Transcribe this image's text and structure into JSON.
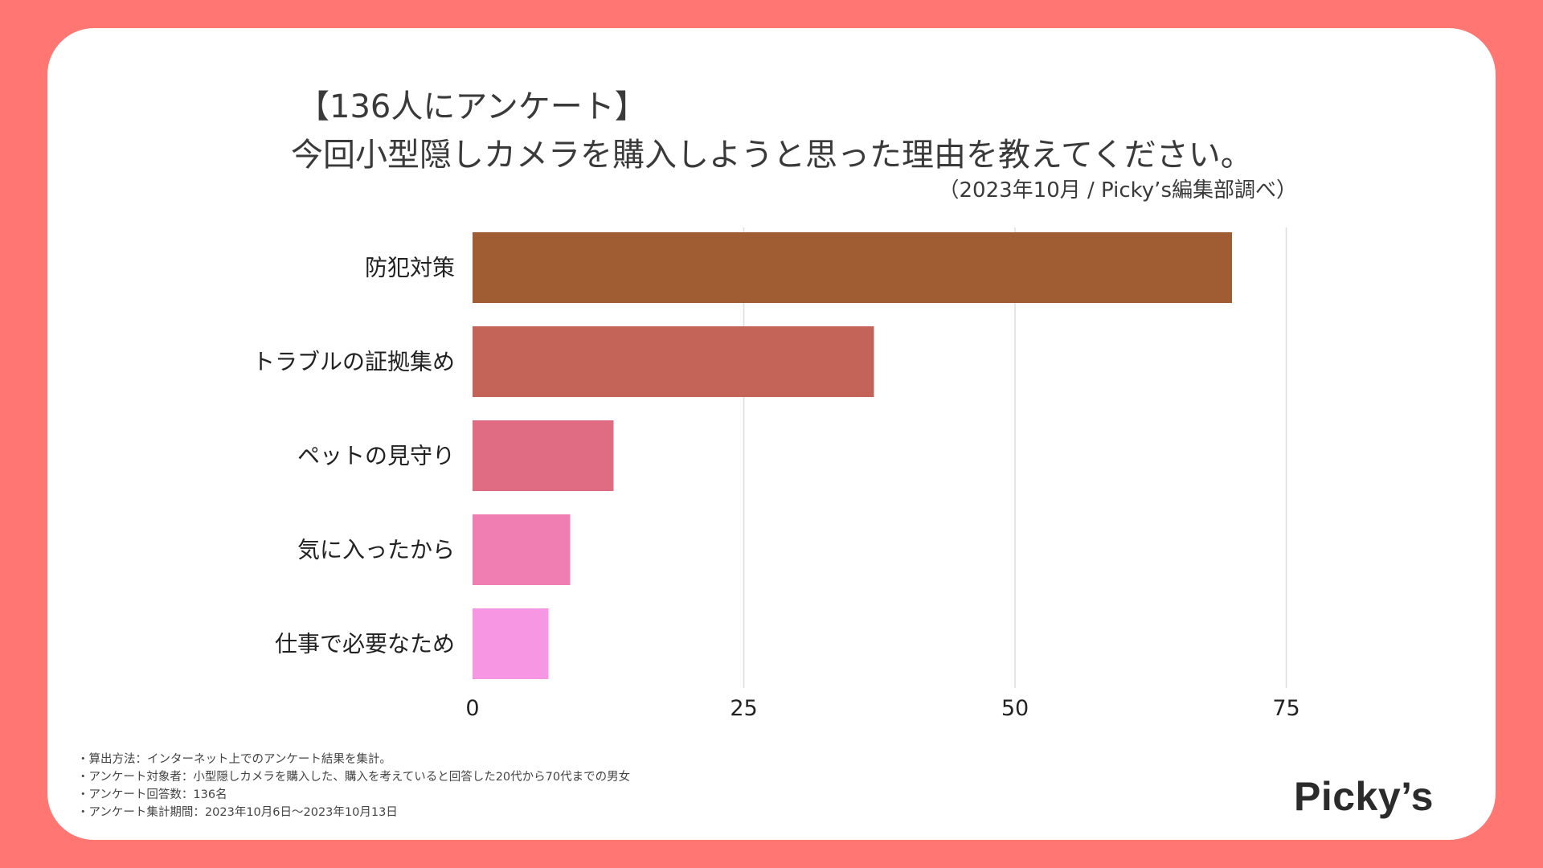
{
  "header": {
    "title_line1": "【136人にアンケート】",
    "title_line2": "今回小型隠しカメラを購入しようと思った理由を教えてください。",
    "source": "（2023年10月 / Picky’s編集部調べ）"
  },
  "chart_data": {
    "type": "bar",
    "orientation": "horizontal",
    "title": "今回小型隠しカメラを購入しようと思った理由を教えてください。",
    "categories": [
      "防犯対策",
      "トラブルの証拠集め",
      "ペットの見守り",
      "気に入ったから",
      "仕事で必要なため"
    ],
    "values": [
      70,
      37,
      13,
      9,
      7
    ],
    "colors": [
      "#A05C33",
      "#C46358",
      "#E06C84",
      "#F07EB3",
      "#F797E3"
    ],
    "xlim": [
      0,
      80
    ],
    "xticks": [
      0,
      25,
      50,
      75
    ],
    "grid": true,
    "xlabel": "",
    "ylabel": ""
  },
  "notes": [
    "・算出方法：インターネット上でのアンケート結果を集計。",
    "・アンケート対象者：小型隠しカメラを購入した、購入を考えていると回答した20代から70代までの男女",
    "・アンケート回答数：136名",
    "・アンケート集計期間：2023年10月6日〜2023年10月13日"
  ],
  "logo": {
    "text": "Picky’s"
  },
  "colors": {
    "background": "#FF7672",
    "card": "#FFFFFF",
    "grid": "#DDDDDD"
  }
}
